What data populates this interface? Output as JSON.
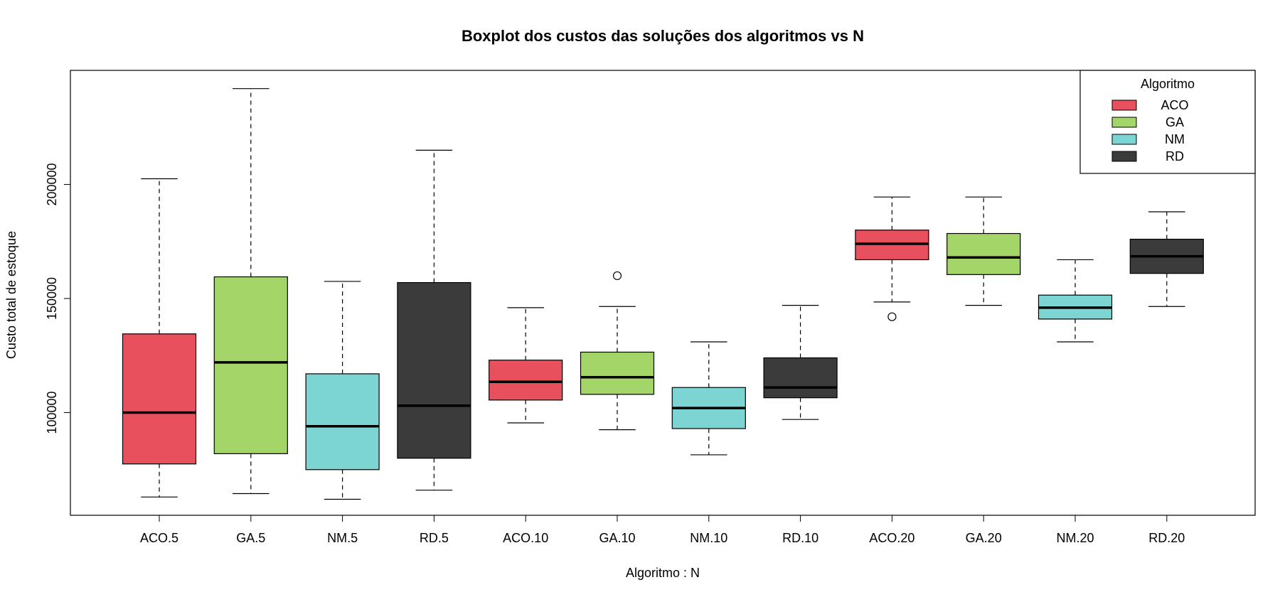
{
  "chart_data": {
    "type": "boxplot",
    "title": "Boxplot dos custos das soluções dos algoritmos vs N",
    "xlabel": "Algoritmo : N",
    "ylabel": "Custo total de estoque",
    "ylim": [
      55000,
      250000
    ],
    "y_ticks": [
      100000,
      150000,
      200000
    ],
    "y_tick_labels": [
      "100000",
      "150000",
      "200000"
    ],
    "categories": [
      "ACO.5",
      "GA.5",
      "NM.5",
      "RD.5",
      "ACO.10",
      "GA.10",
      "NM.10",
      "RD.10",
      "ACO.20",
      "GA.20",
      "NM.20",
      "RD.20"
    ],
    "boxes": [
      {
        "label": "ACO.5",
        "group": "ACO",
        "min": 63000,
        "q1": 77500,
        "median": 100000,
        "q3": 134500,
        "max": 202500,
        "outliers": []
      },
      {
        "label": "GA.5",
        "group": "GA",
        "min": 64500,
        "q1": 82000,
        "median": 122000,
        "q3": 159500,
        "max": 242000,
        "outliers": []
      },
      {
        "label": "NM.5",
        "group": "NM",
        "min": 62000,
        "q1": 75000,
        "median": 94000,
        "q3": 117000,
        "max": 157500,
        "outliers": []
      },
      {
        "label": "RD.5",
        "group": "RD",
        "min": 66000,
        "q1": 80000,
        "median": 103000,
        "q3": 157000,
        "max": 215000,
        "outliers": []
      },
      {
        "label": "ACO.10",
        "group": "ACO",
        "min": 95500,
        "q1": 105500,
        "median": 113500,
        "q3": 123000,
        "max": 146000,
        "outliers": []
      },
      {
        "label": "GA.10",
        "group": "GA",
        "min": 92500,
        "q1": 108000,
        "median": 115500,
        "q3": 126500,
        "max": 146500,
        "outliers": [
          160000
        ]
      },
      {
        "label": "NM.10",
        "group": "NM",
        "min": 81500,
        "q1": 93000,
        "median": 102000,
        "q3": 111000,
        "max": 131000,
        "outliers": []
      },
      {
        "label": "RD.10",
        "group": "RD",
        "min": 97000,
        "q1": 106500,
        "median": 111000,
        "q3": 124000,
        "max": 147000,
        "outliers": []
      },
      {
        "label": "ACO.20",
        "group": "ACO",
        "min": 148500,
        "q1": 167000,
        "median": 174000,
        "q3": 180000,
        "max": 194500,
        "outliers": [
          142000
        ]
      },
      {
        "label": "GA.20",
        "group": "GA",
        "min": 147000,
        "q1": 160500,
        "median": 168000,
        "q3": 178500,
        "max": 194500,
        "outliers": []
      },
      {
        "label": "NM.20",
        "group": "NM",
        "min": 131000,
        "q1": 141000,
        "median": 146000,
        "q3": 151500,
        "max": 167000,
        "outliers": []
      },
      {
        "label": "RD.20",
        "group": "RD",
        "min": 146500,
        "q1": 161000,
        "median": 168500,
        "q3": 176000,
        "max": 188000,
        "outliers": []
      }
    ],
    "legend": {
      "title": "Algoritmo",
      "placement": "top-right",
      "entries": [
        {
          "name": "ACO",
          "color": "#E9505E"
        },
        {
          "name": "GA",
          "color": "#A3D568"
        },
        {
          "name": "NM",
          "color": "#7CD5D3"
        },
        {
          "name": "RD",
          "color": "#3B3B3B"
        }
      ]
    },
    "grid": false
  }
}
